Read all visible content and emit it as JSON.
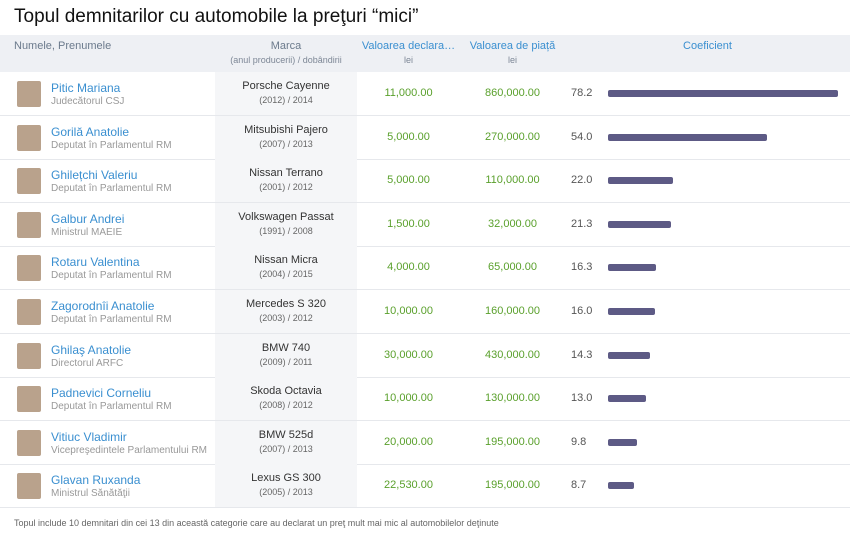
{
  "title": "Topul demnitarilor cu automobile la preţuri “mici”",
  "header": {
    "name": "Numele, Prenumele",
    "brand": "Marca",
    "brand_sub": "(anul producerii) / dobândirii",
    "declared": "Valoarea declara…",
    "declared_unit": "lei",
    "market": "Valoarea de piață",
    "market_unit": "lei",
    "coefficient": "Coeficient"
  },
  "rows": [
    {
      "name": "Pitic Mariana",
      "role": "Judecătorul CSJ",
      "car": "Porsche Cayenne",
      "years": "(2012) / 2014",
      "declared": "11,000.00",
      "market": "860,000.00",
      "coefficient": {
        "value": 78.2,
        "label": "78.2"
      }
    },
    {
      "name": "Gorilă Anatolie",
      "role": "Deputat în Parlamentul RM",
      "car": "Mitsubishi Pajero",
      "years": "(2007) / 2013",
      "declared": "5,000.00",
      "market": "270,000.00",
      "coefficient": {
        "value": 54,
        "label": "54.0"
      }
    },
    {
      "name": "Ghilețchi Valeriu",
      "role": "Deputat în Parlamentul RM",
      "car": "Nissan Terrano",
      "years": "(2001) / 2012",
      "declared": "5,000.00",
      "market": "110,000.00",
      "coefficient": {
        "value": 22,
        "label": "22.0"
      }
    },
    {
      "name": "Galbur Andrei",
      "role": "Ministrul MAEIE",
      "car": "Volkswagen Passat",
      "years": "(1991) / 2008",
      "declared": "1,500.00",
      "market": "32,000.00",
      "coefficient": {
        "value": 21.3,
        "label": "21.3"
      }
    },
    {
      "name": "Rotaru Valentina",
      "role": "Deputat în Parlamentul RM",
      "car": "Nissan Micra",
      "years": "(2004) / 2015",
      "declared": "4,000.00",
      "market": "65,000.00",
      "coefficient": {
        "value": 16.3,
        "label": "16.3"
      }
    },
    {
      "name": "Zagorodnîi Anatolie",
      "role": "Deputat în Parlamentul RM",
      "car": "Mercedes S 320",
      "years": "(2003) / 2012",
      "declared": "10,000.00",
      "market": "160,000.00",
      "coefficient": {
        "value": 16,
        "label": "16.0"
      }
    },
    {
      "name": "Ghilaş Anatolie",
      "role": "Directorul ARFC",
      "car": "BMW 740",
      "years": "(2009) / 2011",
      "declared": "30,000.00",
      "market": "430,000.00",
      "coefficient": {
        "value": 14.3,
        "label": "14.3"
      }
    },
    {
      "name": "Padnevici Corneliu",
      "role": "Deputat în Parlamentul RM",
      "car": "Skoda Octavia",
      "years": "(2008) / 2012",
      "declared": "10,000.00",
      "market": "130,000.00",
      "coefficient": {
        "value": 13,
        "label": "13.0"
      }
    },
    {
      "name": "Vitiuc Vladimir",
      "role": "Vicepreşedintele Parlamentului RM",
      "car": "BMW 525d",
      "years": "(2007) / 2013",
      "declared": "20,000.00",
      "market": "195,000.00",
      "coefficient": {
        "value": 9.8,
        "label": "9.8"
      }
    },
    {
      "name": "Glavan Ruxanda",
      "role": "Ministrul Sănătăţii",
      "car": "Lexus GS 300",
      "years": "(2005) / 2013",
      "declared": "22,530.00",
      "market": "195,000.00",
      "coefficient": {
        "value": 8.7,
        "label": "8.7"
      }
    }
  ],
  "footer": "Topul include 10 demnitari din cei 13 din această categorie care au declarat un preţ mult mai mic al automobilelor deţinute"
}
